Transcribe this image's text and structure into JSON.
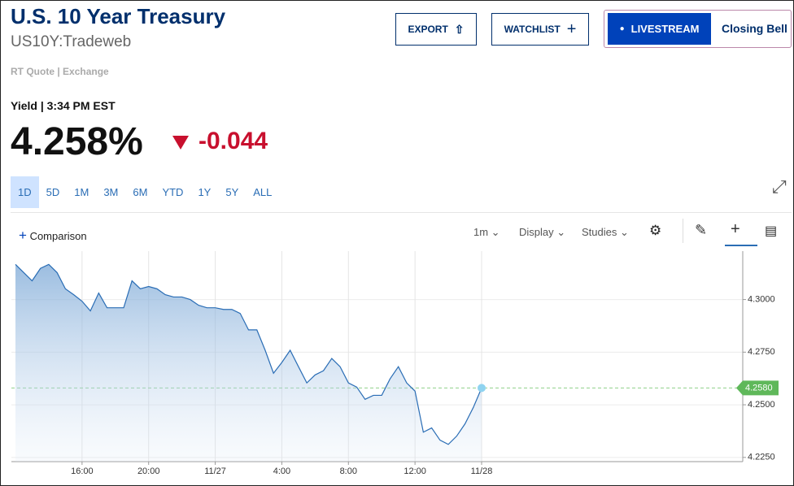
{
  "header": {
    "title": "U.S. 10 Year Treasury",
    "symbol": "US10Y:Tradeweb",
    "quote_source": "RT Quote | Exchange",
    "export": "EXPORT",
    "watchlist": "WATCHLIST",
    "livestream": "LIVESTREAM",
    "closing_bell": "Closing Bell"
  },
  "quote": {
    "label": "Yield | 3:34 PM EST",
    "price": "4.258%",
    "change": "-0.044"
  },
  "ranges": [
    "1D",
    "5D",
    "1M",
    "3M",
    "6M",
    "YTD",
    "1Y",
    "5Y",
    "ALL"
  ],
  "toolbar": {
    "comparison": "Comparison",
    "interval": "1m",
    "display": "Display",
    "studies": "Studies"
  },
  "chart_data": {
    "type": "area",
    "categories": [
      null,
      null,
      null,
      null,
      null,
      null,
      null,
      null,
      "16:00",
      null,
      null,
      null,
      null,
      null,
      null,
      null,
      "20:00",
      null,
      null,
      null,
      null,
      null,
      null,
      null,
      "11/27",
      null,
      null,
      null,
      null,
      null,
      null,
      null,
      "4:00",
      null,
      null,
      null,
      null,
      null,
      null,
      null,
      "8:00",
      null,
      null,
      null,
      null,
      null,
      null,
      null,
      "12:00",
      null,
      null,
      null,
      null,
      null,
      null,
      null,
      "11/28"
    ],
    "series": [
      {
        "name": "US10Y",
        "color": "#2a6db5",
        "values": [
          4.3167,
          4.3128,
          4.3089,
          4.3148,
          4.3167,
          4.3128,
          4.3051,
          4.3023,
          4.2992,
          4.2946,
          4.3031,
          4.2961,
          4.2961,
          4.2961,
          4.3089,
          4.3051,
          4.3062,
          4.3051,
          4.3023,
          4.3012,
          4.3012,
          4.3,
          4.2973,
          4.2961,
          4.2961,
          4.2953,
          4.2953,
          4.2934,
          4.2856,
          4.2856,
          4.2759,
          4.265,
          4.2701,
          4.2759,
          4.2681,
          4.2604,
          4.2642,
          4.2662,
          4.272,
          4.2681,
          4.2604,
          4.2584,
          4.2526,
          4.2545,
          4.2545,
          4.2623,
          4.2681,
          4.2604,
          4.2565,
          4.237,
          4.239,
          4.2332,
          4.2312,
          4.2351,
          4.2409,
          4.2487,
          4.258
        ]
      }
    ],
    "last_value": {
      "value": 4.258,
      "label": "4.2580"
    },
    "ylim": [
      4.223,
      4.323
    ],
    "yticks": [
      {
        "value": 4.225,
        "label": "4.2250"
      },
      {
        "value": 4.25,
        "label": "4.2500"
      },
      {
        "value": 4.275,
        "label": "4.2750"
      },
      {
        "value": 4.3,
        "label": "4.3000"
      }
    ],
    "grid": true
  }
}
